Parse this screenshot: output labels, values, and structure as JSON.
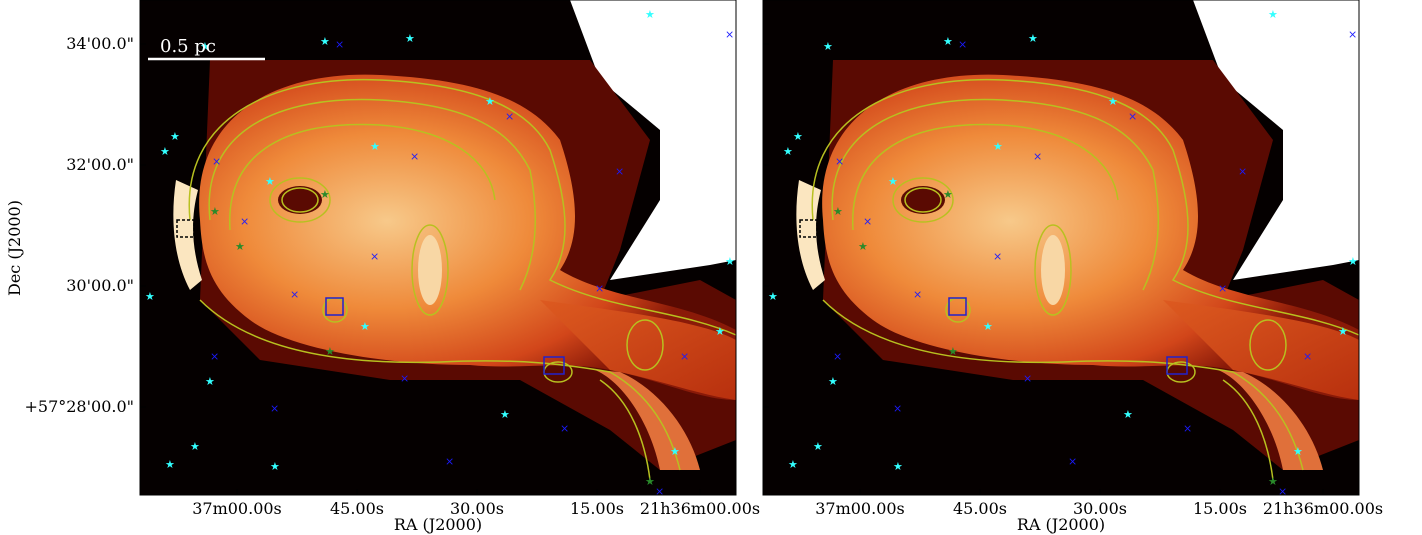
{
  "figure": {
    "scale_bar": "0.5 pc",
    "y_axis_label": "Dec (J2000)",
    "y_ticks": [
      "34'00.0\"",
      "32'00.0\"",
      "30'00.0\"",
      "+57°28'00.0\""
    ],
    "panels": [
      {
        "x_axis_label": "RA (J2000)",
        "x_ticks": [
          "37m00.00s",
          "45.00s",
          "30.00s",
          "15.00s",
          "21h36m00.00s"
        ]
      },
      {
        "x_axis_label": "RA (J2000)",
        "x_ticks": [
          "37m00.00s",
          "45.00s",
          "30.00s",
          "15.00s",
          "21h36m00.00s"
        ]
      }
    ]
  }
}
